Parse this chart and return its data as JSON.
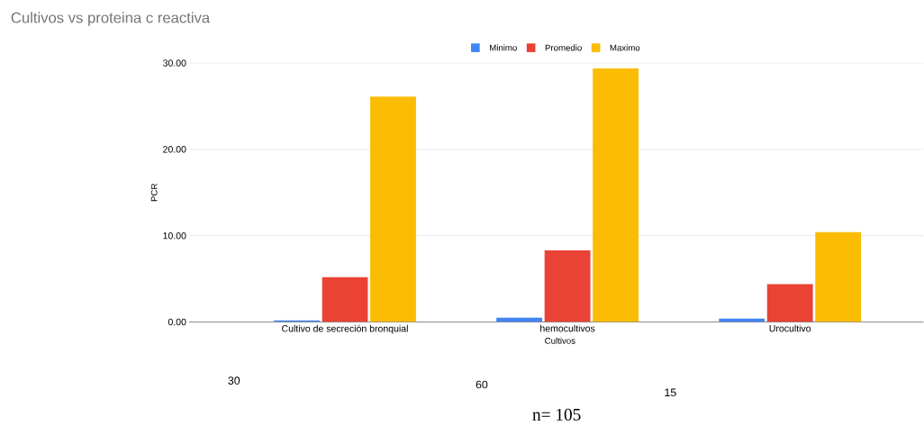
{
  "chart_data": {
    "type": "bar",
    "title": "Cultivos vs proteina c reactiva",
    "xlabel": "Cultivos",
    "ylabel": "PCR",
    "categories": [
      "Cultivo de secreción bronquial",
      "hemocultivos",
      "Urocultivo"
    ],
    "series": [
      {
        "name": "Minimo",
        "color": "#4285f4",
        "values": [
          0.2,
          0.5,
          0.4
        ]
      },
      {
        "name": "Promedio",
        "color": "#ea4335",
        "values": [
          5.2,
          8.3,
          4.4
        ]
      },
      {
        "name": "Maximo",
        "color": "#fbbc04",
        "values": [
          26.1,
          29.4,
          10.4
        ]
      }
    ],
    "ylim": [
      0,
      30
    ],
    "yticks": [
      {
        "value": 0,
        "label": "0.00"
      },
      {
        "value": 10,
        "label": "10.00"
      },
      {
        "value": 20,
        "label": "20.00"
      },
      {
        "value": 30,
        "label": "30.00"
      }
    ],
    "grid": "y",
    "legend": "top",
    "annotations": [
      "30",
      "60",
      "15",
      "n= 105"
    ]
  }
}
